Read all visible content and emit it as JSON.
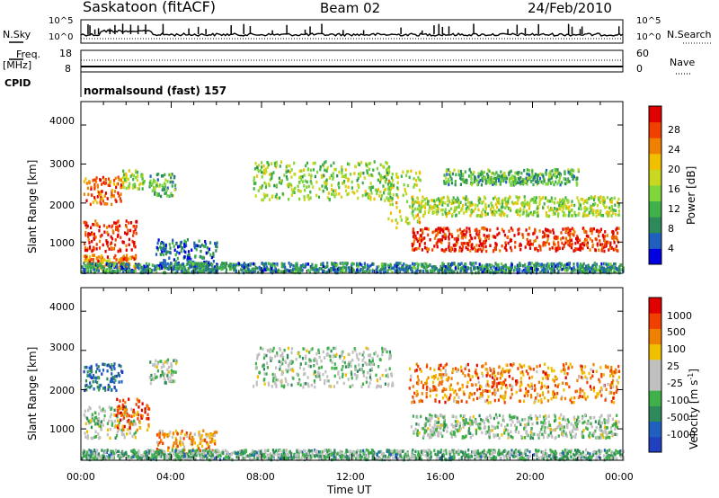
{
  "header": {
    "station": "Saskatoon (fitACF)",
    "beam": "Beam 02",
    "date": "24/Feb/2010"
  },
  "panels": {
    "nsky_label": "N.Sky",
    "nsky_ticks": [
      "10^5",
      "10^0"
    ],
    "nsearch_label": "N.Search",
    "nsearch_ticks": [
      "10^5",
      "10^0"
    ],
    "freq_label": "Freq.",
    "freq_unit": "[MHz]",
    "freq_ticks": [
      "18",
      "8"
    ],
    "nave_label": "Nave",
    "nave_ticks": [
      "60",
      "0"
    ],
    "cpid_label": "CPID",
    "cpid_value": "normalsound (fast) 157"
  },
  "chart_data": [
    {
      "type": "heatmap",
      "name": "power",
      "ylabel": "Slant Range [km]",
      "yticks": [
        "4000",
        "3000",
        "2000",
        "1000"
      ],
      "ytick_values": [
        4000,
        3000,
        2000,
        1000
      ],
      "ylim": [
        200,
        4600
      ],
      "xlim": [
        0,
        24
      ],
      "colorbar": {
        "label": "Power [dB]",
        "tick_labels": [
          "28",
          "24",
          "20",
          "16",
          "12",
          "8",
          "4"
        ],
        "tick_values": [
          28,
          24,
          20,
          16,
          12,
          8,
          4
        ],
        "range": [
          0,
          32
        ],
        "colors": [
          "#0000e0",
          "#1f5fc0",
          "#2e8a5a",
          "#3fb04a",
          "#7ed63a",
          "#c8d820",
          "#f0c000",
          "#f08000",
          "#f04000",
          "#e00000"
        ]
      },
      "bands": [
        {
          "t0": 0.1,
          "t1": 1.8,
          "r0": 2000,
          "r1": 2700,
          "level": 0.8
        },
        {
          "t0": 1.8,
          "t1": 2.8,
          "r0": 2400,
          "r1": 2900,
          "level": 0.5
        },
        {
          "t0": 0.1,
          "t1": 2.5,
          "r0": 800,
          "r1": 1600,
          "level": 0.9
        },
        {
          "t0": 0.1,
          "t1": 2.4,
          "r0": 350,
          "r1": 700,
          "level": 0.75
        },
        {
          "t0": 3.0,
          "t1": 4.2,
          "r0": 2200,
          "r1": 2800,
          "level": 0.35
        },
        {
          "t0": 3.3,
          "t1": 6.0,
          "r0": 400,
          "r1": 1100,
          "level": 0.2
        },
        {
          "t0": 7.6,
          "t1": 13.8,
          "r0": 2100,
          "r1": 3100,
          "level": 0.45
        },
        {
          "t0": 13.5,
          "t1": 15.0,
          "r0": 1400,
          "r1": 2900,
          "level": 0.55
        },
        {
          "t0": 14.6,
          "t1": 23.8,
          "r0": 1700,
          "r1": 2200,
          "level": 0.5
        },
        {
          "t0": 14.6,
          "t1": 23.8,
          "r0": 800,
          "r1": 1400,
          "level": 0.9
        },
        {
          "t0": 16.0,
          "t1": 22.0,
          "r0": 2500,
          "r1": 2900,
          "level": 0.35
        },
        {
          "t0": 0.0,
          "t1": 24.0,
          "r0": 250,
          "r1": 500,
          "level": 0.25
        }
      ]
    },
    {
      "type": "heatmap",
      "name": "velocity",
      "xlabel": "Time UT",
      "ylabel": "Slant Range [km]",
      "yticks": [
        "4000",
        "3000",
        "2000",
        "1000"
      ],
      "ytick_values": [
        4000,
        3000,
        2000,
        1000
      ],
      "ylim": [
        200,
        4600
      ],
      "xlim": [
        0,
        24
      ],
      "xticks": [
        "00:00",
        "04:00",
        "08:00",
        "12:00",
        "16:00",
        "20:00",
        "00:00"
      ],
      "xtick_values": [
        0,
        4,
        8,
        12,
        16,
        20,
        24
      ],
      "colorbar": {
        "label": "Velocity [m s",
        "label_exp": "-1",
        "label_end": "]",
        "tick_labels": [
          "1000",
          "500",
          "100",
          "25",
          "-25",
          "-100",
          "-500",
          "-1000"
        ],
        "tick_values": [
          1000,
          500,
          100,
          25,
          -25,
          -100,
          -500,
          -1000
        ],
        "colors": [
          "#2040c0",
          "#1f5fc0",
          "#2e8a5a",
          "#3fb04a",
          "#c0c0c0",
          "#c0c0c0",
          "#f0c000",
          "#f08000",
          "#f04000",
          "#e00000"
        ]
      },
      "bands": [
        {
          "t0": 0.1,
          "t1": 1.8,
          "r0": 2000,
          "r1": 2700,
          "level": 0.15
        },
        {
          "t0": 0.1,
          "t1": 2.5,
          "r0": 800,
          "r1": 1600,
          "level": 0.45
        },
        {
          "t0": 1.5,
          "t1": 3.0,
          "r0": 1000,
          "r1": 1800,
          "level": 0.8
        },
        {
          "t0": 3.3,
          "t1": 6.0,
          "r0": 400,
          "r1": 1000,
          "level": 0.7
        },
        {
          "t0": 3.0,
          "t1": 4.2,
          "r0": 2200,
          "r1": 2800,
          "level": 0.45
        },
        {
          "t0": 7.6,
          "t1": 13.8,
          "r0": 2100,
          "r1": 3100,
          "level": 0.45
        },
        {
          "t0": 14.5,
          "t1": 23.8,
          "r0": 1700,
          "r1": 2700,
          "level": 0.75
        },
        {
          "t0": 14.6,
          "t1": 23.8,
          "r0": 800,
          "r1": 1400,
          "level": 0.45
        },
        {
          "t0": 0.0,
          "t1": 24.0,
          "r0": 250,
          "r1": 500,
          "level": 0.35
        }
      ]
    }
  ]
}
